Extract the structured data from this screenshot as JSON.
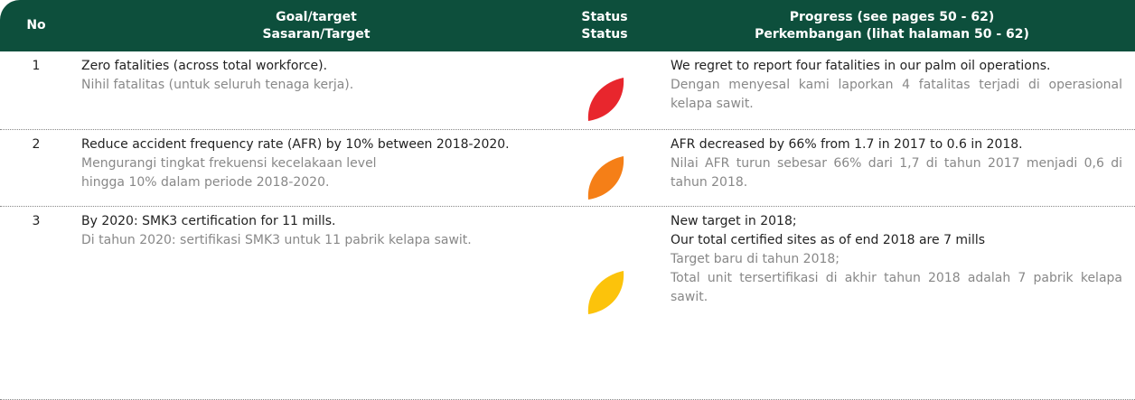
{
  "table": {
    "columns": [
      [
        "No"
      ],
      [
        "Goal/target",
        "Sasaran/Target"
      ],
      [
        "Status",
        "Status"
      ],
      [
        "Progress (see pages 50 - 62)",
        "Perkembangan (lihat halaman 50 - 62)"
      ]
    ],
    "rows": [
      {
        "no": "1",
        "status_color": "#e8262d",
        "goal": {
          "en": [
            "Zero fatalities (across total workforce)."
          ],
          "id": [
            "Nihil fatalitas (untuk seluruh tenaga kerja)."
          ]
        },
        "progress": {
          "en": [
            "We regret to report four fatalities in our palm oil operations."
          ],
          "id": [
            "Dengan menyesal kami laporkan 4 fatalitas terjadi di operasional kelapa sawit."
          ]
        }
      },
      {
        "no": "2",
        "status_color": "#f57f17",
        "goal": {
          "en": [
            "Reduce accident frequency rate (AFR) by 10% between 2018-2020."
          ],
          "id": [
            "Mengurangi tingkat frekuensi kecelakaan level",
            "hingga 10% dalam periode 2018-2020."
          ]
        },
        "progress": {
          "en": [
            "AFR decreased by 66% from 1.7 in 2017 to 0.6 in 2018."
          ],
          "id": [
            "Nilai AFR turun sebesar 66% dari 1,7 di tahun 2017 menjadi 0,6 di tahun 2018."
          ]
        }
      },
      {
        "no": "3",
        "status_color": "#fcc30b",
        "goal": {
          "en": [
            "By 2020: SMK3 certification for 11 mills."
          ],
          "id": [
            "Di tahun 2020: sertifikasi SMK3 untuk 11 pabrik kelapa sawit."
          ]
        },
        "progress": {
          "en": [
            "New target in 2018;",
            "Our total certified sites as of end 2018 are 7 mills"
          ],
          "id": [
            "Target baru di tahun 2018;",
            "Total unit tersertifikasi di akhir tahun 2018 adalah 7 pabrik kelapa sawit."
          ]
        }
      }
    ]
  }
}
